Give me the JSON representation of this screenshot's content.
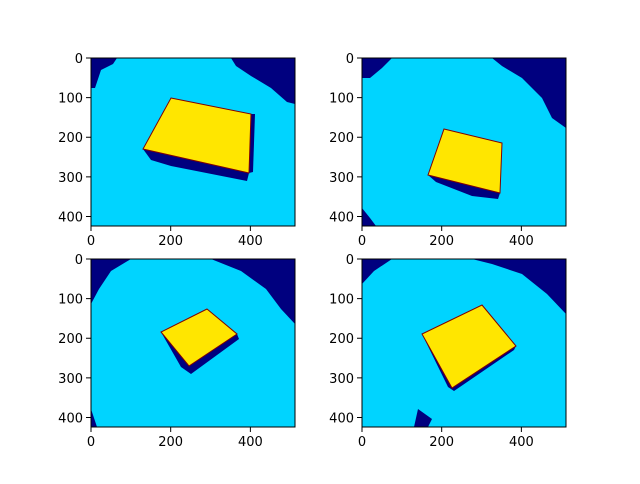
{
  "chart_data": [
    {
      "type": "image",
      "xlim": [
        0,
        512
      ],
      "ylim": [
        424,
        0
      ],
      "xticks": [
        0,
        200,
        400
      ],
      "yticks": [
        0,
        100,
        200,
        300,
        400
      ]
    },
    {
      "type": "image",
      "xlim": [
        0,
        512
      ],
      "ylim": [
        424,
        0
      ],
      "xticks": [
        0,
        200,
        400
      ],
      "yticks": [
        0,
        100,
        200,
        300,
        400
      ]
    },
    {
      "type": "image",
      "xlim": [
        0,
        512
      ],
      "ylim": [
        424,
        0
      ],
      "xticks": [
        0,
        200,
        400
      ],
      "yticks": [
        0,
        100,
        200,
        300,
        400
      ]
    },
    {
      "type": "image",
      "xlim": [
        0,
        512
      ],
      "ylim": [
        424,
        0
      ],
      "xticks": [
        0,
        200,
        400
      ],
      "yticks": [
        0,
        100,
        200,
        300,
        400
      ]
    }
  ]
}
